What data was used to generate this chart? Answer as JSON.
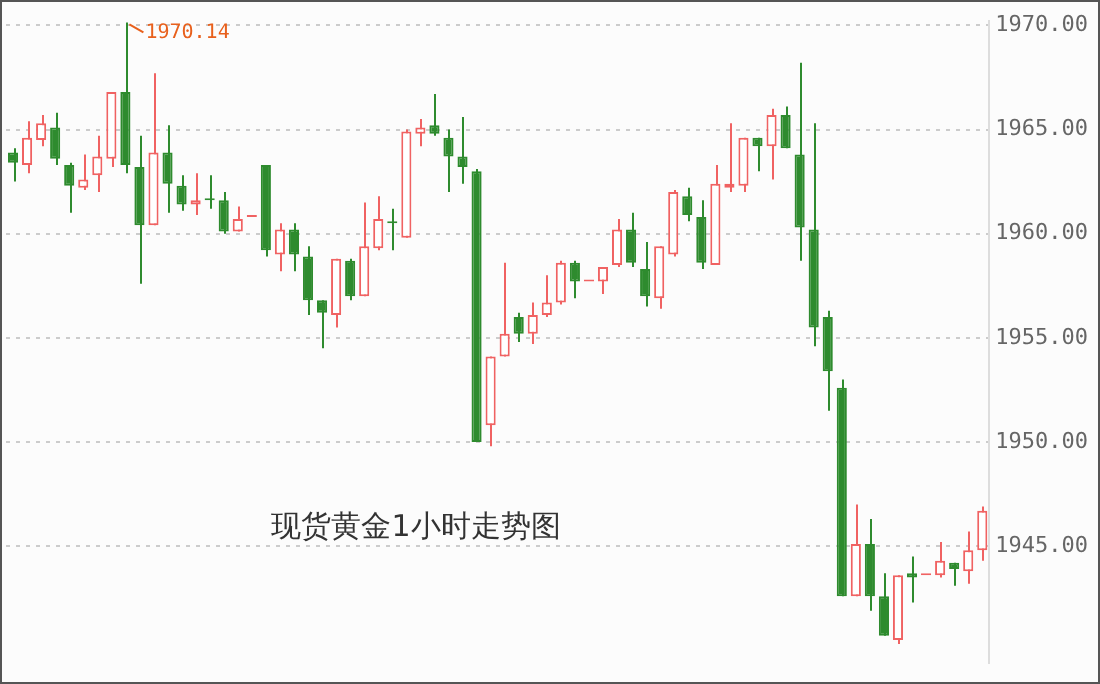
{
  "chart_data": {
    "type": "candlestick",
    "categories": [
      null,
      null,
      null,
      null,
      null,
      null,
      null,
      null,
      null,
      null,
      null,
      null,
      null,
      null,
      null,
      null,
      null,
      null,
      null,
      null,
      null,
      null,
      null,
      null,
      null,
      null,
      null,
      null,
      null,
      null,
      null,
      null,
      null,
      null,
      null,
      null,
      null,
      null,
      null,
      null,
      null,
      null,
      null,
      null,
      null,
      null,
      null,
      null,
      null,
      null,
      null,
      null,
      null,
      null,
      null,
      null,
      null,
      null,
      null,
      null,
      null,
      null,
      null,
      null,
      null,
      null,
      null,
      null,
      null,
      null
    ],
    "ohlc": [
      [
        1963.9,
        1964.1,
        1962.5,
        1963.4
      ],
      [
        1963.3,
        1965.4,
        1962.9,
        1964.6
      ],
      [
        1964.5,
        1965.7,
        1964.2,
        1965.3
      ],
      [
        1965.1,
        1965.8,
        1963.3,
        1963.6
      ],
      [
        1963.3,
        1963.4,
        1961.0,
        1962.3
      ],
      [
        1962.2,
        1963.8,
        1962.1,
        1962.6
      ],
      [
        1962.8,
        1964.7,
        1962.0,
        1963.7
      ],
      [
        1963.6,
        1966.8,
        1963.2,
        1966.8
      ],
      [
        1966.8,
        1970.14,
        1962.9,
        1963.3
      ],
      [
        1963.2,
        1964.7,
        1957.6,
        1960.4
      ],
      [
        1960.4,
        1967.7,
        1960.4,
        1963.9
      ],
      [
        1963.9,
        1965.2,
        1961.0,
        1962.4
      ],
      [
        1962.3,
        1962.8,
        1961.1,
        1961.4
      ],
      [
        1961.4,
        1962.9,
        1960.9,
        1961.6
      ],
      [
        1961.65,
        1962.8,
        1961.2,
        1961.6
      ],
      [
        1961.6,
        1962.0,
        1960.0,
        1960.1
      ],
      [
        1960.1,
        1961.3,
        1960.1,
        1960.7
      ],
      [
        1960.8,
        1960.8,
        1960.8,
        1960.8
      ],
      [
        1963.3,
        1963.3,
        1958.9,
        1959.2
      ],
      [
        1959.0,
        1960.5,
        1958.2,
        1960.2
      ],
      [
        1960.2,
        1960.5,
        1958.2,
        1959.0
      ],
      [
        1958.9,
        1959.4,
        1956.1,
        1956.8
      ],
      [
        1956.8,
        1956.8,
        1954.5,
        1956.2
      ],
      [
        1956.1,
        1958.8,
        1955.5,
        1958.8
      ],
      [
        1958.7,
        1958.8,
        1956.8,
        1957.0
      ],
      [
        1957.0,
        1961.5,
        1957.0,
        1959.4
      ],
      [
        1959.3,
        1961.8,
        1959.2,
        1960.7
      ],
      [
        1960.6,
        1961.2,
        1959.2,
        1960.5
      ],
      [
        1959.8,
        1965.0,
        1959.8,
        1964.9
      ],
      [
        1964.8,
        1965.5,
        1964.2,
        1965.1
      ],
      [
        1965.2,
        1966.7,
        1964.7,
        1964.8
      ],
      [
        1964.6,
        1965.0,
        1962.0,
        1963.7
      ],
      [
        1963.7,
        1965.6,
        1962.4,
        1963.2
      ],
      [
        1963.0,
        1963.1,
        1950.0,
        1950.0
      ],
      [
        1950.8,
        1954.1,
        1949.8,
        1954.1
      ],
      [
        1954.1,
        1958.6,
        1954.1,
        1955.2
      ],
      [
        1956.0,
        1956.2,
        1954.8,
        1955.2
      ],
      [
        1955.2,
        1956.7,
        1954.7,
        1956.1
      ],
      [
        1956.1,
        1958.0,
        1956.0,
        1956.7
      ],
      [
        1956.7,
        1958.7,
        1956.6,
        1958.6
      ],
      [
        1958.6,
        1958.7,
        1956.9,
        1957.7
      ],
      [
        1957.7,
        1957.7,
        1957.7,
        1957.7
      ],
      [
        1957.7,
        1958.4,
        1957.1,
        1958.4
      ],
      [
        1958.5,
        1960.7,
        1958.4,
        1960.2
      ],
      [
        1960.2,
        1961.0,
        1958.4,
        1958.6
      ],
      [
        1958.3,
        1959.6,
        1956.5,
        1957.0
      ],
      [
        1956.9,
        1959.4,
        1956.4,
        1959.4
      ],
      [
        1959.0,
        1962.1,
        1958.9,
        1962.0
      ],
      [
        1961.8,
        1962.2,
        1960.6,
        1960.9
      ],
      [
        1960.8,
        1961.6,
        1958.3,
        1958.6
      ],
      [
        1958.5,
        1963.3,
        1958.5,
        1962.4
      ],
      [
        1962.2,
        1965.3,
        1962.0,
        1962.4
      ],
      [
        1962.3,
        1964.6,
        1962.0,
        1964.6
      ],
      [
        1964.6,
        1964.6,
        1963.0,
        1964.2
      ],
      [
        1964.2,
        1966.0,
        1962.6,
        1965.7
      ],
      [
        1965.7,
        1966.1,
        1964.1,
        1964.1
      ],
      [
        1963.8,
        1968.2,
        1958.7,
        1960.3
      ],
      [
        1960.2,
        1965.3,
        1954.6,
        1955.5
      ],
      [
        1956.0,
        1956.3,
        1951.5,
        1953.4
      ],
      [
        1952.6,
        1953.0,
        1942.6,
        1942.6
      ],
      [
        1942.6,
        1947.0,
        1942.6,
        1945.1
      ],
      [
        1945.1,
        1946.3,
        1941.9,
        1942.6
      ],
      [
        1942.6,
        1943.7,
        1940.7,
        1940.7
      ],
      [
        1940.5,
        1943.6,
        1940.3,
        1943.6
      ],
      [
        1943.7,
        1944.5,
        1942.3,
        1943.5
      ],
      [
        1943.6,
        1943.6,
        1943.6,
        1943.6
      ],
      [
        1943.6,
        1945.2,
        1943.5,
        1944.3
      ],
      [
        1944.2,
        1944.2,
        1943.1,
        1943.9
      ],
      [
        1943.8,
        1945.7,
        1943.2,
        1944.8
      ],
      [
        1944.8,
        1946.9,
        1944.3,
        1946.7
      ]
    ],
    "colors": [
      "#2e8b2e",
      "#f06262",
      "#f06262",
      "#2e8b2e",
      "#2e8b2e",
      "#f06262",
      "#f06262",
      "#f06262",
      "#2e8b2e",
      "#2e8b2e",
      "#f06262",
      "#2e8b2e",
      "#2e8b2e",
      "#f06262",
      "#2e8b2e",
      "#2e8b2e",
      "#f06262",
      "#f06262",
      "#2e8b2e",
      "#f06262",
      "#2e8b2e",
      "#2e8b2e",
      "#2e8b2e",
      "#f06262",
      "#2e8b2e",
      "#f06262",
      "#f06262",
      "#2e8b2e",
      "#f06262",
      "#f06262",
      "#2e8b2e",
      "#2e8b2e",
      "#2e8b2e",
      "#2e8b2e",
      "#f06262",
      "#f06262",
      "#2e8b2e",
      "#f06262",
      "#f06262",
      "#f06262",
      "#2e8b2e",
      "#f06262",
      "#f06262",
      "#f06262",
      "#2e8b2e",
      "#2e8b2e",
      "#f06262",
      "#f06262",
      "#2e8b2e",
      "#2e8b2e",
      "#f06262",
      "#f06262",
      "#f06262",
      "#2e8b2e",
      "#f06262",
      "#2e8b2e",
      "#2e8b2e",
      "#2e8b2e",
      "#2e8b2e",
      "#2e8b2e",
      "#f06262",
      "#2e8b2e",
      "#2e8b2e",
      "#f06262",
      "#2e8b2e",
      "#f06262",
      "#f06262",
      "#2e8b2e",
      "#f06262",
      "#f06262"
    ],
    "ylim": [
      1939.4,
      1970.2
    ],
    "yticks": [
      {
        "value": 1945,
        "label": "1945.00"
      },
      {
        "value": 1950,
        "label": "1950.00"
      },
      {
        "value": 1955,
        "label": "1955.00"
      },
      {
        "value": 1960,
        "label": "1960.00"
      },
      {
        "value": 1965,
        "label": "1965.00"
      },
      {
        "value": 1970,
        "label": "1970.00"
      }
    ],
    "grid": "y",
    "tick_labels": "y",
    "annotations": [
      "1970.14",
      "现货黄金1小时走势图"
    ]
  }
}
